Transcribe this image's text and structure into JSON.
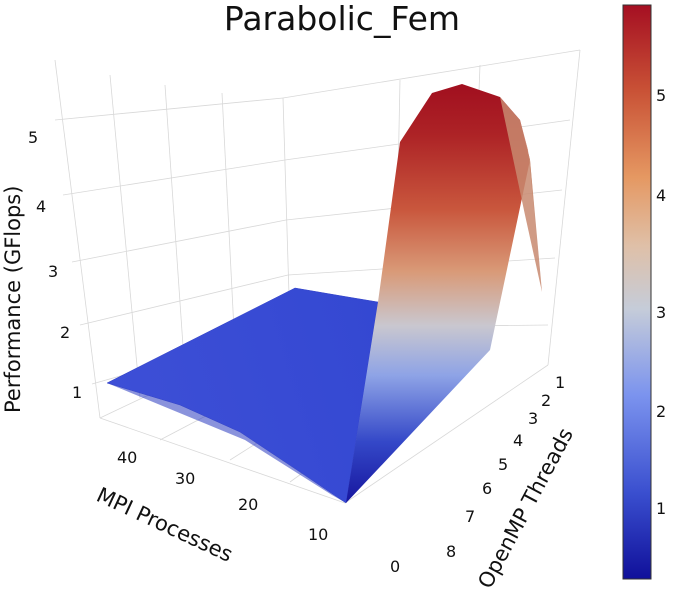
{
  "chart_data": {
    "type": "surface3d",
    "title": "Parabolic_Fem",
    "xlabel": "MPI Processes",
    "ylabel": "OpenMP Threads",
    "zlabel": "Performance (GFlops)",
    "x_ticks": [
      "0",
      "10",
      "20",
      "30",
      "40"
    ],
    "y_ticks": [
      "1",
      "2",
      "3",
      "4",
      "5",
      "6",
      "7",
      "8"
    ],
    "z_ticks": [
      "1",
      "2",
      "3",
      "4",
      "5"
    ],
    "colorbar_ticks": [
      "1",
      "2",
      "3",
      "4",
      "5"
    ],
    "colorbar_range": [
      0.2,
      5.9
    ],
    "colormap": [
      "#1a1aa8",
      "#4f6bdc",
      "#9fb2e8",
      "#d9d3cf",
      "#e8a274",
      "#cc5a3e",
      "#a81424"
    ],
    "surface": {
      "mpi_processes": [
        1,
        2,
        4,
        8,
        16,
        24,
        32,
        48
      ],
      "openmp_threads": [
        1,
        2,
        3,
        4,
        5,
        6,
        7,
        8
      ],
      "performance_gflops": [
        [
          1.6,
          4.8,
          5.4,
          5.6,
          5.5,
          5.2,
          4.6,
          2.2
        ],
        [
          1.5,
          1.4,
          1.3,
          1.2,
          1.1,
          1.0,
          0.9,
          0.3
        ],
        [
          1.5,
          1.4,
          1.3,
          1.2,
          1.1,
          1.0,
          0.9,
          0.6
        ],
        [
          1.5,
          1.4,
          1.3,
          1.2,
          1.1,
          1.0,
          0.9,
          0.7
        ],
        [
          1.4,
          1.3,
          1.2,
          1.1,
          1.0,
          1.0,
          0.9,
          0.8
        ],
        [
          1.4,
          1.3,
          1.2,
          1.1,
          1.0,
          1.0,
          0.9,
          0.9
        ],
        [
          1.3,
          1.2,
          1.1,
          1.1,
          1.0,
          1.0,
          0.9,
          0.9
        ],
        [
          1.2,
          1.1,
          1.0,
          1.0,
          1.0,
          1.0,
          1.0,
          1.0
        ]
      ]
    },
    "grid": true
  }
}
